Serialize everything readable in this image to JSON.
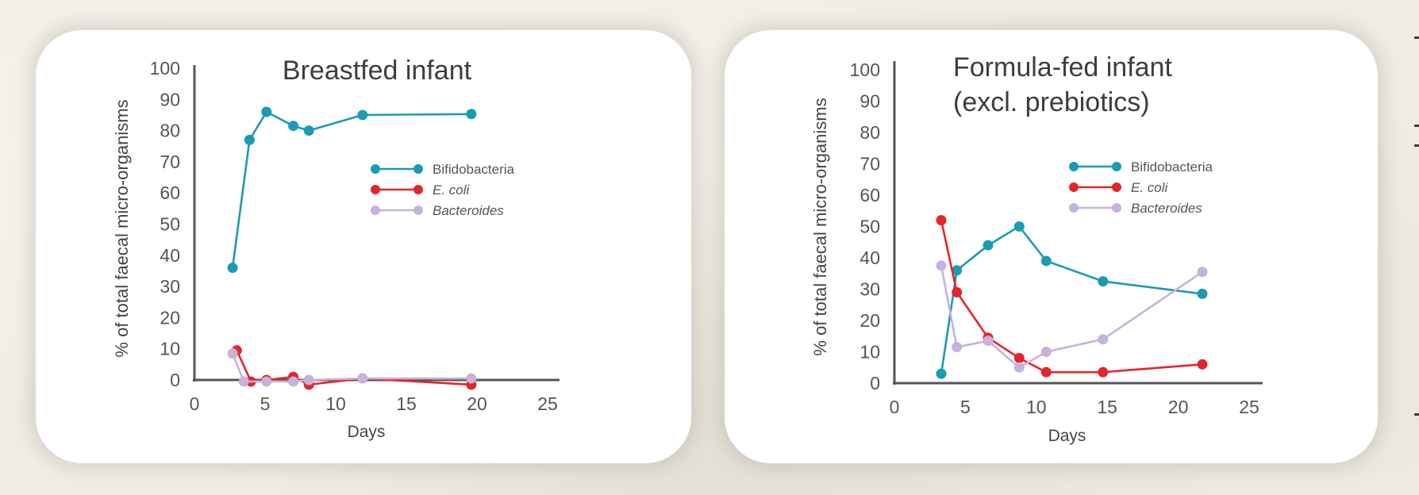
{
  "colors": {
    "bifidobacteria": "#1a9bb3",
    "ecoli": "#e3262b",
    "bacteroides": "#c7b2d9",
    "axis": "#555555"
  },
  "chart_data": [
    {
      "type": "line",
      "title": "Breastfed infant",
      "title_lines": [
        "Breastfed infant"
      ],
      "xlabel": "Days",
      "ylabel": "% of total faecal micro-organisms",
      "xlim": [
        0,
        25
      ],
      "ylim": [
        0,
        100
      ],
      "xticks": [
        "0",
        "5",
        "10",
        "15",
        "20",
        "25"
      ],
      "yticks": [
        "0",
        "10",
        "20",
        "30",
        "40",
        "50",
        "60",
        "70",
        "80",
        "90",
        "100"
      ],
      "legend_position": "center-right",
      "series": [
        {
          "name": "Bifidobacteria",
          "key": "bifidobacteria",
          "italic": false,
          "x": [
            2.7,
            3.9,
            5.1,
            7.0,
            8.1,
            11.9,
            19.6
          ],
          "y": [
            36,
            77,
            86,
            81.5,
            80,
            85,
            85.3
          ]
        },
        {
          "name": "E. coli",
          "key": "ecoli",
          "italic": true,
          "x": [
            3.0,
            4.0,
            5.1,
            7.0,
            8.1,
            11.9,
            19.6
          ],
          "y": [
            9.5,
            -0.5,
            0,
            1,
            -1.5,
            0.5,
            -1.5
          ]
        },
        {
          "name": "Bacteroides",
          "key": "bacteroides",
          "italic": true,
          "x": [
            2.7,
            3.5,
            5.1,
            7.0,
            8.1,
            11.9,
            19.6
          ],
          "y": [
            8.5,
            -0.5,
            -0.5,
            -0.5,
            0,
            0.5,
            0.5
          ]
        }
      ]
    },
    {
      "type": "line",
      "title": "Formula-fed infant (excl. prebiotics)",
      "title_lines": [
        "Formula-fed infant",
        "(excl. prebiotics)"
      ],
      "xlabel": "Days",
      "ylabel": "% of total faecal micro-organisms",
      "xlim": [
        0,
        25
      ],
      "ylim": [
        0,
        100
      ],
      "xticks": [
        "0",
        "5",
        "10",
        "15",
        "20",
        "25"
      ],
      "yticks": [
        "0",
        "10",
        "20",
        "30",
        "40",
        "50",
        "60",
        "70",
        "80",
        "90",
        "100"
      ],
      "legend_position": "top-right",
      "series": [
        {
          "name": "Bifidobacteria",
          "key": "bifidobacteria",
          "italic": false,
          "x": [
            3.3,
            4.4,
            6.6,
            8.8,
            10.7,
            14.7,
            21.7
          ],
          "y": [
            3,
            36,
            44,
            50,
            39,
            32.5,
            28.5
          ]
        },
        {
          "name": "E. coli",
          "key": "ecoli",
          "italic": true,
          "x": [
            3.3,
            4.4,
            6.6,
            8.8,
            10.7,
            14.7,
            21.7
          ],
          "y": [
            52,
            29,
            14.5,
            8,
            3.5,
            3.5,
            6
          ]
        },
        {
          "name": "Bacteroides",
          "key": "bacteroides",
          "italic": true,
          "x": [
            3.3,
            4.4,
            6.6,
            8.8,
            10.7,
            14.7,
            21.7
          ],
          "y": [
            37.5,
            11.5,
            13.5,
            5,
            10,
            14,
            35.5
          ]
        }
      ]
    }
  ]
}
